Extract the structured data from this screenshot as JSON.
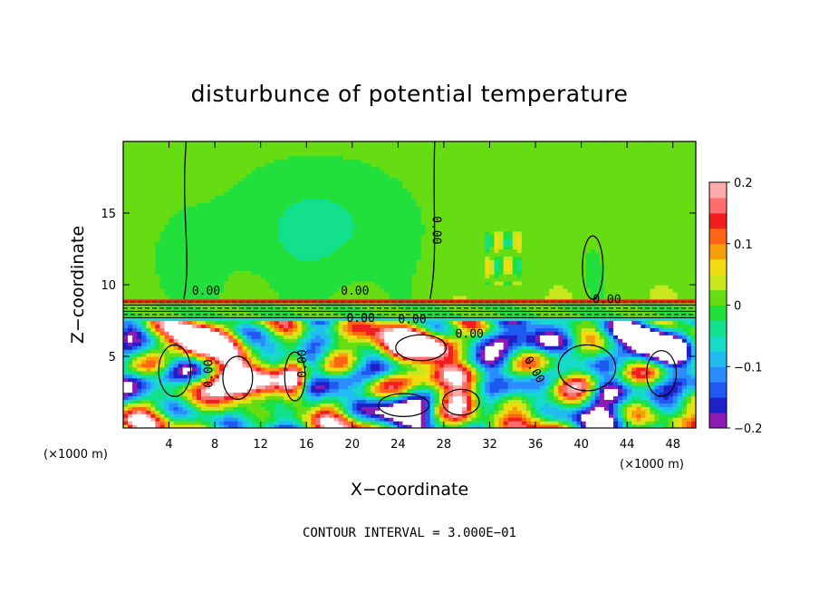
{
  "chart_data": {
    "type": "heatmap",
    "title": "disturbunce of potential temperature",
    "xlabel": "X−coordinate",
    "ylabel": "Z−coordinate",
    "x_unit_left": "(×1000 m)",
    "x_unit_right": "(×1000 m)",
    "xlim": [
      0,
      50
    ],
    "ylim": [
      0,
      20
    ],
    "x_ticks": [
      4,
      8,
      12,
      16,
      20,
      24,
      28,
      32,
      36,
      40,
      44,
      48
    ],
    "y_ticks": [
      5,
      10,
      15
    ],
    "colorbar": {
      "min": -0.2,
      "max": 0.2,
      "tick_values": [
        0.2,
        0.1,
        0,
        -0.1,
        -0.2
      ],
      "tick_labels": [
        "0.2",
        "0.1",
        "0",
        "−0.1",
        "−0.2"
      ],
      "colors": [
        "#8c1ab4",
        "#2020c8",
        "#1e5af0",
        "#2a8cff",
        "#21bdf0",
        "#15dbc8",
        "#13e08c",
        "#22e03c",
        "#66dc12",
        "#c8e61e",
        "#f0dc10",
        "#f5a00a",
        "#ff6414",
        "#f01e1e",
        "#ff6e6e",
        "#ffaaaa"
      ]
    },
    "contour_labels": [
      "0.00",
      "0.00",
      "0.00",
      "0.00",
      "0.00",
      "0.00",
      "0.00",
      "0.00",
      "0.00",
      "0.00"
    ],
    "footer": "CONTOUR INTERVAL = 3.000E−01"
  }
}
